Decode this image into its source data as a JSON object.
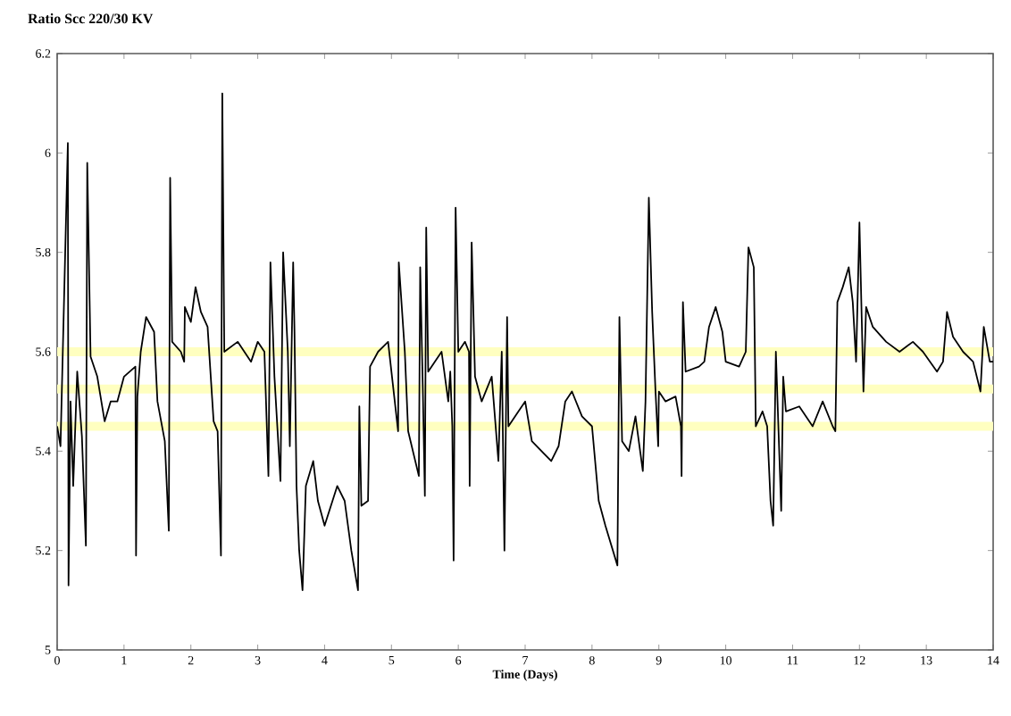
{
  "chart_data": {
    "type": "line",
    "title": "Ratio Scc 220/30 KV",
    "xlabel": "Time (Days)",
    "xlim": [
      0,
      14
    ],
    "xticks": [
      0,
      1,
      2,
      3,
      4,
      5,
      6,
      7,
      8,
      9,
      10,
      11,
      12,
      13,
      14
    ],
    "ylim": [
      5,
      6.2
    ],
    "yticks": [
      5,
      5.2,
      5.4,
      5.6,
      5.8,
      6,
      6.2
    ],
    "grid": false,
    "marker": "none",
    "line_style": "solid",
    "ref_lines": [
      {
        "axis": "y",
        "value": 5.6,
        "color": "#ffffc0"
      },
      {
        "axis": "y",
        "value": 5.525,
        "color": "#ffffc0"
      },
      {
        "axis": "y",
        "value": 5.45,
        "color": "#ffffc0"
      }
    ],
    "series": [
      {
        "color": "#000000",
        "x": [
          0,
          0.05,
          0.16,
          0.17,
          0.2,
          0.24,
          0.3,
          0.37,
          0.43,
          0.45,
          0.5,
          0.6,
          0.71,
          0.8,
          0.9,
          1.0,
          1.17,
          1.18,
          1.2,
          1.25,
          1.33,
          1.45,
          1.5,
          1.61,
          1.67,
          1.69,
          1.72,
          1.85,
          1.9,
          1.91,
          2.0,
          2.07,
          2.15,
          2.25,
          2.34,
          2.4,
          2.45,
          2.47,
          2.5,
          2.7,
          2.9,
          3.0,
          3.1,
          3.16,
          3.19,
          3.25,
          3.34,
          3.38,
          3.45,
          3.48,
          3.53,
          3.55,
          3.58,
          3.62,
          3.67,
          3.72,
          3.83,
          3.9,
          4.0,
          4.19,
          4.3,
          4.4,
          4.5,
          4.52,
          4.55,
          4.65,
          4.68,
          4.8,
          4.95,
          5.1,
          5.11,
          5.2,
          5.25,
          5.41,
          5.43,
          5.47,
          5.5,
          5.52,
          5.55,
          5.75,
          5.85,
          5.88,
          5.91,
          5.93,
          5.96,
          6.0,
          6.1,
          6.16,
          6.17,
          6.2,
          6.25,
          6.35,
          6.5,
          6.6,
          6.65,
          6.69,
          6.73,
          6.75,
          6.9,
          7.0,
          7.1,
          7.39,
          7.5,
          7.6,
          7.7,
          7.85,
          8.0,
          8.1,
          8.2,
          8.38,
          8.41,
          8.45,
          8.55,
          8.65,
          8.76,
          8.8,
          8.85,
          8.9,
          8.95,
          8.99,
          9.0,
          9.1,
          9.25,
          9.33,
          9.34,
          9.36,
          9.4,
          9.6,
          9.68,
          9.75,
          9.85,
          9.95,
          10.0,
          10.2,
          10.3,
          10.34,
          10.42,
          10.45,
          10.55,
          10.62,
          10.67,
          10.71,
          10.75,
          10.83,
          10.86,
          10.9,
          11.1,
          11.3,
          11.45,
          11.6,
          11.64,
          11.67,
          11.75,
          11.84,
          11.9,
          11.95,
          12.0,
          12.06,
          12.1,
          12.2,
          12.4,
          12.6,
          12.8,
          12.95,
          13.16,
          13.25,
          13.31,
          13.4,
          13.55,
          13.7,
          13.81,
          13.86,
          13.95,
          14
        ],
        "values": [
          5.45,
          5.41,
          6.02,
          5.13,
          5.5,
          5.33,
          5.56,
          5.43,
          5.21,
          5.98,
          5.59,
          5.55,
          5.46,
          5.5,
          5.5,
          5.55,
          5.57,
          5.19,
          5.51,
          5.6,
          5.67,
          5.64,
          5.5,
          5.42,
          5.24,
          5.95,
          5.62,
          5.6,
          5.58,
          5.69,
          5.66,
          5.73,
          5.68,
          5.65,
          5.46,
          5.44,
          5.19,
          6.12,
          5.6,
          5.62,
          5.58,
          5.62,
          5.6,
          5.35,
          5.78,
          5.55,
          5.34,
          5.8,
          5.6,
          5.41,
          5.78,
          5.64,
          5.33,
          5.2,
          5.12,
          5.33,
          5.38,
          5.3,
          5.25,
          5.33,
          5.3,
          5.2,
          5.12,
          5.49,
          5.29,
          5.3,
          5.57,
          5.6,
          5.62,
          5.44,
          5.78,
          5.6,
          5.44,
          5.35,
          5.77,
          5.52,
          5.31,
          5.85,
          5.56,
          5.6,
          5.5,
          5.56,
          5.45,
          5.18,
          5.89,
          5.6,
          5.62,
          5.6,
          5.33,
          5.82,
          5.55,
          5.5,
          5.55,
          5.38,
          5.6,
          5.2,
          5.67,
          5.45,
          5.48,
          5.5,
          5.42,
          5.38,
          5.41,
          5.5,
          5.52,
          5.47,
          5.45,
          5.3,
          5.25,
          5.17,
          5.67,
          5.42,
          5.4,
          5.47,
          5.36,
          5.5,
          5.91,
          5.68,
          5.52,
          5.41,
          5.52,
          5.5,
          5.51,
          5.45,
          5.35,
          5.7,
          5.56,
          5.57,
          5.58,
          5.65,
          5.69,
          5.64,
          5.58,
          5.57,
          5.6,
          5.81,
          5.77,
          5.45,
          5.48,
          5.45,
          5.3,
          5.25,
          5.6,
          5.28,
          5.55,
          5.48,
          5.49,
          5.45,
          5.5,
          5.45,
          5.44,
          5.7,
          5.73,
          5.77,
          5.7,
          5.58,
          5.86,
          5.52,
          5.69,
          5.65,
          5.62,
          5.6,
          5.62,
          5.6,
          5.56,
          5.58,
          5.68,
          5.63,
          5.6,
          5.58,
          5.52,
          5.65,
          5.58,
          5.58
        ]
      }
    ]
  }
}
